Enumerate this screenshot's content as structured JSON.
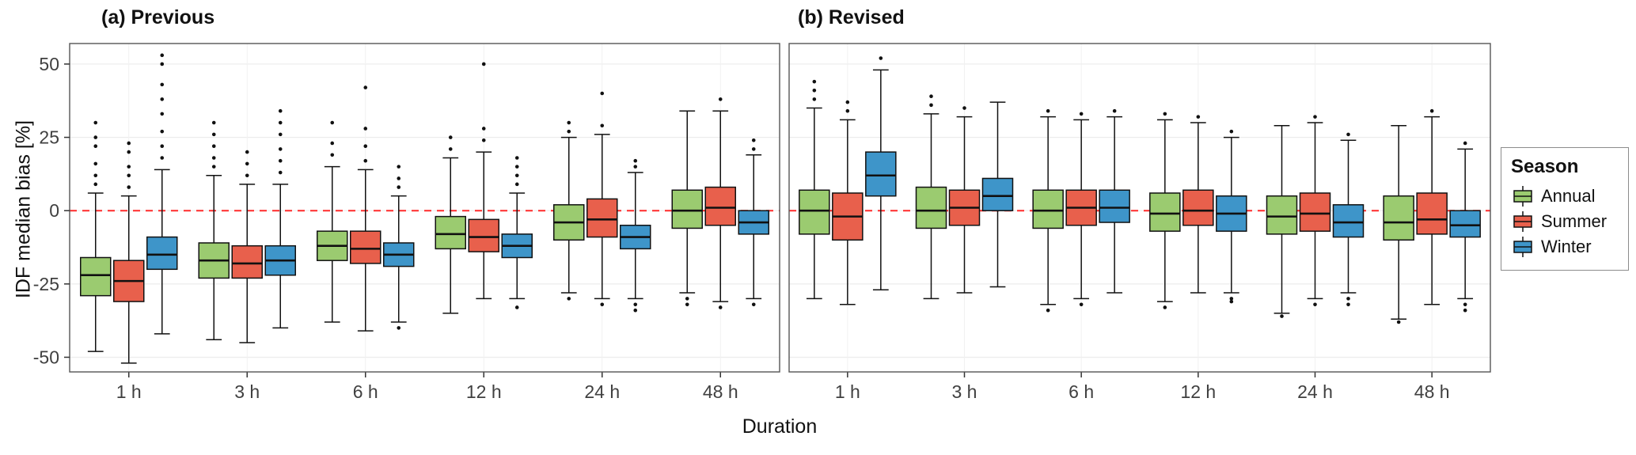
{
  "chart_data": {
    "type": "boxplot",
    "xlabel": "Duration",
    "ylabel": "IDF median bias [%]",
    "ylim": [
      -55,
      57
    ],
    "yticks": [
      50,
      25,
      0,
      -25,
      -50
    ],
    "yticklabels": [
      "50",
      "25",
      "0",
      "-25",
      "-50"
    ],
    "categories": [
      "1 h",
      "3 h",
      "6 h",
      "12 h",
      "24 h",
      "48 h"
    ],
    "grid": "light horizontal and vertical major gridlines",
    "reference_line": {
      "y": 0,
      "color": "#ff2a2a",
      "style": "dashed"
    },
    "series_colors": {
      "Annual": "#9BCB70",
      "Summer": "#E8604C",
      "Winter": "#3E95C9"
    },
    "legend": {
      "title": "Season",
      "items": [
        "Annual",
        "Summer",
        "Winter"
      ],
      "position": "right"
    },
    "panels": [
      {
        "label": "(a) Previous",
        "groups": [
          {
            "category": "1 h",
            "boxes": [
              {
                "season": "Annual",
                "low": -48,
                "q1": -29,
                "median": -22,
                "q3": -16,
                "high": 6,
                "outliers": [
                  9,
                  12,
                  16,
                  22,
                  25,
                  30
                ]
              },
              {
                "season": "Summer",
                "low": -52,
                "q1": -31,
                "median": -24,
                "q3": -17,
                "high": 5,
                "outliers": [
                  8,
                  12,
                  15,
                  20,
                  23
                ]
              },
              {
                "season": "Winter",
                "low": -42,
                "q1": -20,
                "median": -15,
                "q3": -9,
                "high": 14,
                "outliers": [
                  18,
                  22,
                  27,
                  33,
                  38,
                  43,
                  50,
                  53
                ]
              }
            ]
          },
          {
            "category": "3 h",
            "boxes": [
              {
                "season": "Annual",
                "low": -44,
                "q1": -23,
                "median": -17,
                "q3": -11,
                "high": 12,
                "outliers": [
                  15,
                  18,
                  22,
                  26,
                  30
                ]
              },
              {
                "season": "Summer",
                "low": -45,
                "q1": -23,
                "median": -18,
                "q3": -12,
                "high": 9,
                "outliers": [
                  12,
                  16,
                  20
                ]
              },
              {
                "season": "Winter",
                "low": -40,
                "q1": -22,
                "median": -17,
                "q3": -12,
                "high": 9,
                "outliers": [
                  13,
                  17,
                  21,
                  26,
                  30,
                  34
                ]
              }
            ]
          },
          {
            "category": "6 h",
            "boxes": [
              {
                "season": "Annual",
                "low": -38,
                "q1": -17,
                "median": -12,
                "q3": -7,
                "high": 15,
                "outliers": [
                  19,
                  23,
                  30
                ]
              },
              {
                "season": "Summer",
                "low": -41,
                "q1": -18,
                "median": -13,
                "q3": -7,
                "high": 14,
                "outliers": [
                  17,
                  22,
                  28,
                  42
                ]
              },
              {
                "season": "Winter",
                "low": -38,
                "q1": -19,
                "median": -15,
                "q3": -11,
                "high": 5,
                "outliers": [
                  8,
                  11,
                  15,
                  -40
                ]
              }
            ]
          },
          {
            "category": "12 h",
            "boxes": [
              {
                "season": "Annual",
                "low": -35,
                "q1": -13,
                "median": -8,
                "q3": -2,
                "high": 18,
                "outliers": [
                  21,
                  25
                ]
              },
              {
                "season": "Summer",
                "low": -30,
                "q1": -14,
                "median": -9,
                "q3": -3,
                "high": 20,
                "outliers": [
                  24,
                  28,
                  50
                ]
              },
              {
                "season": "Winter",
                "low": -30,
                "q1": -16,
                "median": -12,
                "q3": -8,
                "high": 6,
                "outliers": [
                  9,
                  12,
                  15,
                  18,
                  -33
                ]
              }
            ]
          },
          {
            "category": "24 h",
            "boxes": [
              {
                "season": "Annual",
                "low": -28,
                "q1": -10,
                "median": -4,
                "q3": 2,
                "high": 25,
                "outliers": [
                  27,
                  30,
                  -30
                ]
              },
              {
                "season": "Summer",
                "low": -30,
                "q1": -9,
                "median": -3,
                "q3": 4,
                "high": 26,
                "outliers": [
                  29,
                  40,
                  -32
                ]
              },
              {
                "season": "Winter",
                "low": -30,
                "q1": -13,
                "median": -9,
                "q3": -5,
                "high": 13,
                "outliers": [
                  15,
                  17,
                  -32,
                  -34
                ]
              }
            ]
          },
          {
            "category": "48 h",
            "boxes": [
              {
                "season": "Annual",
                "low": -28,
                "q1": -6,
                "median": 0,
                "q3": 7,
                "high": 34,
                "outliers": [
                  -30,
                  -32
                ]
              },
              {
                "season": "Summer",
                "low": -31,
                "q1": -5,
                "median": 1,
                "q3": 8,
                "high": 34,
                "outliers": [
                  38,
                  -33
                ]
              },
              {
                "season": "Winter",
                "low": -30,
                "q1": -8,
                "median": -4,
                "q3": 0,
                "high": 19,
                "outliers": [
                  21,
                  24,
                  -32
                ]
              }
            ]
          }
        ]
      },
      {
        "label": "(b) Revised",
        "groups": [
          {
            "category": "1 h",
            "boxes": [
              {
                "season": "Annual",
                "low": -30,
                "q1": -8,
                "median": 0,
                "q3": 7,
                "high": 35,
                "outliers": [
                  38,
                  41,
                  44
                ]
              },
              {
                "season": "Summer",
                "low": -32,
                "q1": -10,
                "median": -2,
                "q3": 6,
                "high": 31,
                "outliers": [
                  34,
                  37
                ]
              },
              {
                "season": "Winter",
                "low": -27,
                "q1": 5,
                "median": 12,
                "q3": 20,
                "high": 48,
                "outliers": [
                  52
                ]
              }
            ]
          },
          {
            "category": "3 h",
            "boxes": [
              {
                "season": "Annual",
                "low": -30,
                "q1": -6,
                "median": 0,
                "q3": 8,
                "high": 33,
                "outliers": [
                  36,
                  39
                ]
              },
              {
                "season": "Summer",
                "low": -28,
                "q1": -5,
                "median": 1,
                "q3": 7,
                "high": 32,
                "outliers": [
                  35
                ]
              },
              {
                "season": "Winter",
                "low": -26,
                "q1": 0,
                "median": 5,
                "q3": 11,
                "high": 37,
                "outliers": []
              }
            ]
          },
          {
            "category": "6 h",
            "boxes": [
              {
                "season": "Annual",
                "low": -32,
                "q1": -6,
                "median": 0,
                "q3": 7,
                "high": 32,
                "outliers": [
                  34,
                  -34
                ]
              },
              {
                "season": "Summer",
                "low": -30,
                "q1": -5,
                "median": 1,
                "q3": 7,
                "high": 31,
                "outliers": [
                  33,
                  -32
                ]
              },
              {
                "season": "Winter",
                "low": -28,
                "q1": -4,
                "median": 1,
                "q3": 7,
                "high": 32,
                "outliers": [
                  34
                ]
              }
            ]
          },
          {
            "category": "12 h",
            "boxes": [
              {
                "season": "Annual",
                "low": -31,
                "q1": -7,
                "median": -1,
                "q3": 6,
                "high": 31,
                "outliers": [
                  33,
                  -33
                ]
              },
              {
                "season": "Summer",
                "low": -28,
                "q1": -5,
                "median": 0,
                "q3": 7,
                "high": 30,
                "outliers": [
                  32
                ]
              },
              {
                "season": "Winter",
                "low": -28,
                "q1": -7,
                "median": -1,
                "q3": 5,
                "high": 25,
                "outliers": [
                  27,
                  -30,
                  -31
                ]
              }
            ]
          },
          {
            "category": "24 h",
            "boxes": [
              {
                "season": "Annual",
                "low": -35,
                "q1": -8,
                "median": -2,
                "q3": 5,
                "high": 29,
                "outliers": [
                  -36
                ]
              },
              {
                "season": "Summer",
                "low": -30,
                "q1": -7,
                "median": -1,
                "q3": 6,
                "high": 30,
                "outliers": [
                  32,
                  -32
                ]
              },
              {
                "season": "Winter",
                "low": -28,
                "q1": -9,
                "median": -4,
                "q3": 2,
                "high": 24,
                "outliers": [
                  26,
                  -30,
                  -32
                ]
              }
            ]
          },
          {
            "category": "48 h",
            "boxes": [
              {
                "season": "Annual",
                "low": -37,
                "q1": -10,
                "median": -4,
                "q3": 5,
                "high": 29,
                "outliers": [
                  -38
                ]
              },
              {
                "season": "Summer",
                "low": -32,
                "q1": -8,
                "median": -3,
                "q3": 6,
                "high": 32,
                "outliers": [
                  34
                ]
              },
              {
                "season": "Winter",
                "low": -30,
                "q1": -9,
                "median": -5,
                "q3": 0,
                "high": 21,
                "outliers": [
                  23,
                  -32,
                  -34
                ]
              }
            ]
          }
        ]
      }
    ]
  }
}
